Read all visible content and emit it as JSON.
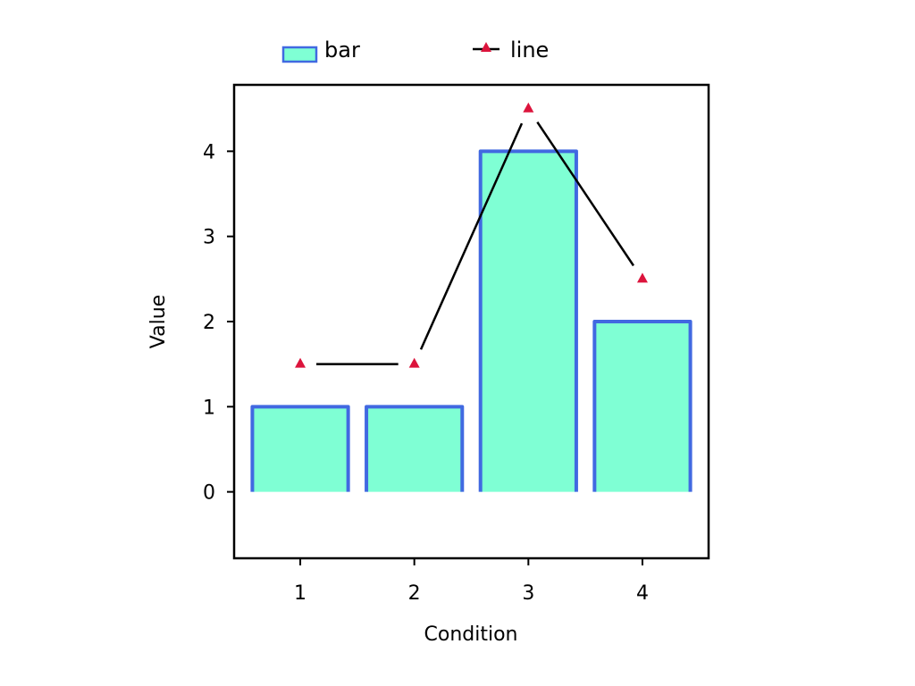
{
  "chart_data": {
    "type": "bar",
    "title": "",
    "xlabel": "Condition",
    "ylabel": "Value",
    "categories": [
      "1",
      "2",
      "3",
      "4"
    ],
    "x": [
      1,
      2,
      3,
      4
    ],
    "xlim": [
      0.42,
      4.58
    ],
    "ylim": [
      -0.78,
      4.78
    ],
    "yticks": [
      0,
      1,
      2,
      3,
      4
    ],
    "grid": false,
    "legend_position": "top",
    "series": [
      {
        "name": "bar",
        "type": "bar",
        "values": [
          1,
          1,
          4,
          2
        ],
        "fill_color": "#7fffd4",
        "edge_color": "#4169e1"
      },
      {
        "name": "line",
        "type": "line",
        "values": [
          1.5,
          1.5,
          4.5,
          2.5
        ],
        "line_color": "#000000",
        "marker": "triangle",
        "marker_color": "#dc143c"
      }
    ]
  }
}
